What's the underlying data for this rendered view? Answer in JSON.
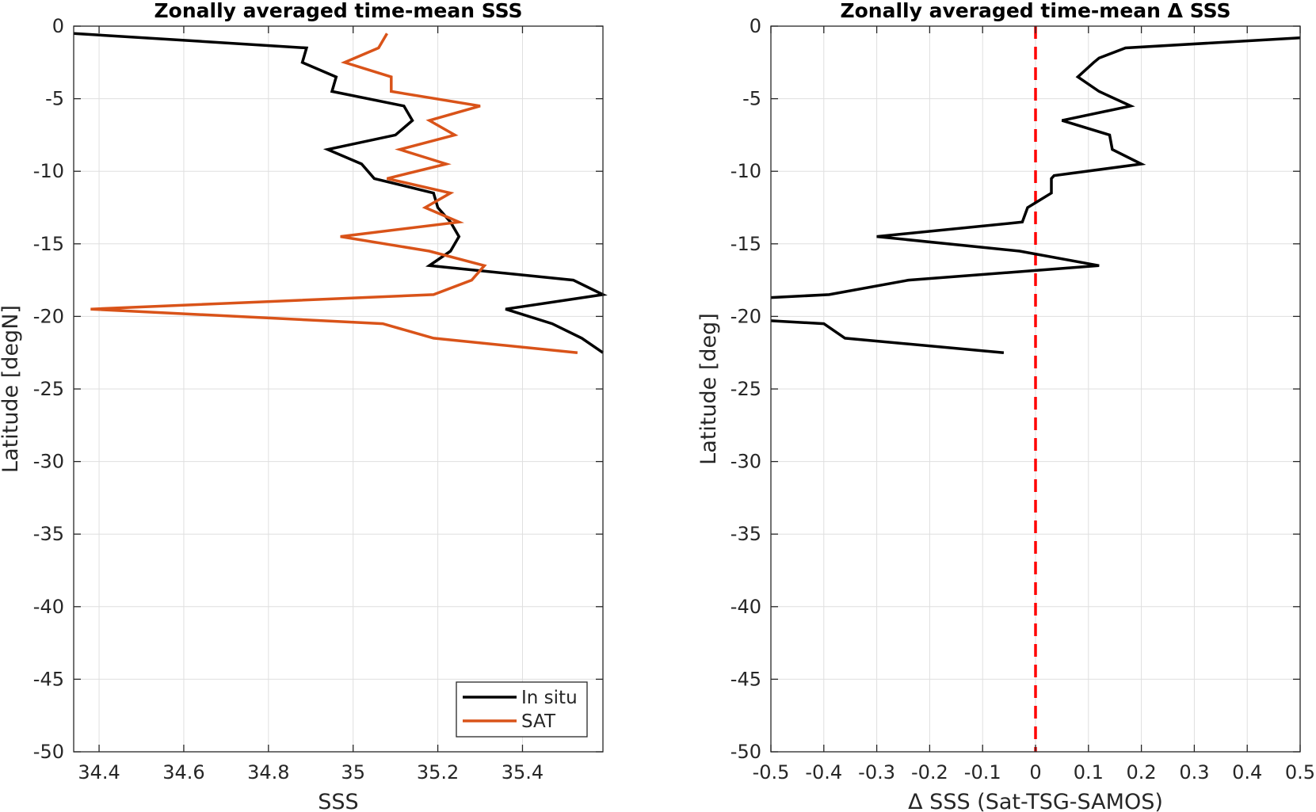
{
  "colors": {
    "in_situ": "#000000",
    "sat": "#d95319",
    "zero_line": "#ff0000"
  },
  "chart_data": [
    {
      "type": "line",
      "title": "Zonally averaged time-mean SSS",
      "xlabel": "SSS",
      "ylabel": "Latitude [degN]",
      "xlim": [
        34.34,
        35.59
      ],
      "ylim": [
        -50,
        0
      ],
      "xticks": [
        34.4,
        34.6,
        34.8,
        35,
        35.2,
        35.4
      ],
      "xtick_labels": [
        "34.4",
        "34.6",
        "34.8",
        "35",
        "35.2",
        "35.4"
      ],
      "yticks": [
        0,
        -5,
        -10,
        -15,
        -20,
        -25,
        -30,
        -35,
        -40,
        -45,
        -50
      ],
      "ytick_labels": [
        "0",
        "-5",
        "-10",
        "-15",
        "-20",
        "-25",
        "-30",
        "-35",
        "-40",
        "-45",
        "-50"
      ],
      "grid": true,
      "legend": "bottom-right",
      "series": [
        {
          "name": "In situ",
          "color": "#000000",
          "points": [
            [
              34.34,
              -0.5
            ],
            [
              34.89,
              -1.5
            ],
            [
              34.88,
              -2.5
            ],
            [
              34.96,
              -3.5
            ],
            [
              34.95,
              -4.5
            ],
            [
              35.12,
              -5.5
            ],
            [
              35.14,
              -6.5
            ],
            [
              35.1,
              -7.5
            ],
            [
              34.94,
              -8.5
            ],
            [
              35.02,
              -9.5
            ],
            [
              35.05,
              -10.5
            ],
            [
              35.19,
              -11.5
            ],
            [
              35.2,
              -12.5
            ],
            [
              35.23,
              -13.5
            ],
            [
              35.25,
              -14.5
            ],
            [
              35.23,
              -15.5
            ],
            [
              35.18,
              -16.5
            ],
            [
              35.52,
              -17.5
            ],
            [
              35.59,
              -18.5
            ],
            [
              35.36,
              -19.5
            ],
            [
              35.47,
              -20.5
            ],
            [
              35.54,
              -21.5
            ],
            [
              35.59,
              -22.5
            ]
          ]
        },
        {
          "name": "SAT",
          "color": "#d95319",
          "points": [
            [
              35.08,
              -0.5
            ],
            [
              35.06,
              -1.5
            ],
            [
              34.98,
              -2.5
            ],
            [
              35.09,
              -3.5
            ],
            [
              35.09,
              -4.5
            ],
            [
              35.3,
              -5.5
            ],
            [
              35.18,
              -6.5
            ],
            [
              35.24,
              -7.5
            ],
            [
              35.11,
              -8.5
            ],
            [
              35.22,
              -9.5
            ],
            [
              35.08,
              -10.5
            ],
            [
              35.23,
              -11.5
            ],
            [
              35.17,
              -12.5
            ],
            [
              35.25,
              -13.5
            ],
            [
              34.97,
              -14.5
            ],
            [
              35.18,
              -15.5
            ],
            [
              35.31,
              -16.5
            ],
            [
              35.28,
              -17.5
            ],
            [
              35.19,
              -18.5
            ],
            [
              34.38,
              -19.5
            ],
            [
              35.07,
              -20.5
            ],
            [
              35.19,
              -21.5
            ],
            [
              35.53,
              -22.5
            ]
          ]
        }
      ]
    },
    {
      "type": "line",
      "title": "Zonally averaged time-mean Δ SSS",
      "xlabel": "Δ SSS (Sat-TSG-SAMOS)",
      "ylabel": "Latitude [deg]",
      "xlim": [
        -0.5,
        0.5
      ],
      "ylim": [
        -50,
        0
      ],
      "xticks": [
        -0.5,
        -0.4,
        -0.3,
        -0.2,
        -0.1,
        0,
        0.1,
        0.2,
        0.3,
        0.4,
        0.5
      ],
      "xtick_labels": [
        "-0.5",
        "-0.4",
        "-0.3",
        "-0.2",
        "-0.1",
        "0",
        "0.1",
        "0.2",
        "0.3",
        "0.4",
        "0.5"
      ],
      "yticks": [
        0,
        -5,
        -10,
        -15,
        -20,
        -25,
        -30,
        -35,
        -40,
        -45,
        -50
      ],
      "ytick_labels": [
        "0",
        "-5",
        "-10",
        "-15",
        "-20",
        "-25",
        "-30",
        "-35",
        "-40",
        "-45",
        "-50"
      ],
      "grid": true,
      "series": [
        {
          "color": "#000000",
          "points": [
            [
              0.5,
              -0.8
            ],
            [
              0.17,
              -1.5
            ],
            [
              0.12,
              -2.2
            ],
            [
              0.11,
              -2.5
            ],
            [
              0.08,
              -3.5
            ],
            [
              0.12,
              -4.5
            ],
            [
              0.18,
              -5.5
            ],
            [
              0.05,
              -6.5
            ],
            [
              0.14,
              -7.5
            ],
            [
              0.145,
              -8.5
            ],
            [
              0.2,
              -9.5
            ],
            [
              0.035,
              -10.3
            ],
            [
              0.03,
              -10.5
            ],
            [
              0.03,
              -11.5
            ],
            [
              -0.015,
              -12.5
            ],
            [
              -0.025,
              -13.5
            ],
            [
              -0.3,
              -14.5
            ],
            [
              -0.03,
              -15.5
            ],
            [
              0.12,
              -16.5
            ],
            [
              -0.24,
              -17.5
            ],
            [
              -0.39,
              -18.5
            ],
            [
              -0.5,
              -18.7
            ]
          ]
        },
        {
          "color": "#000000",
          "points": [
            [
              -0.5,
              -20.3
            ],
            [
              -0.4,
              -20.5
            ],
            [
              -0.36,
              -21.5
            ],
            [
              -0.06,
              -22.5
            ]
          ]
        }
      ],
      "reference_line": {
        "x": 0,
        "style": "dashed",
        "color": "#ff0000"
      }
    }
  ],
  "legend": {
    "items": [
      {
        "label": "In situ",
        "color": "#000000"
      },
      {
        "label": "SAT",
        "color": "#d95319"
      }
    ]
  }
}
